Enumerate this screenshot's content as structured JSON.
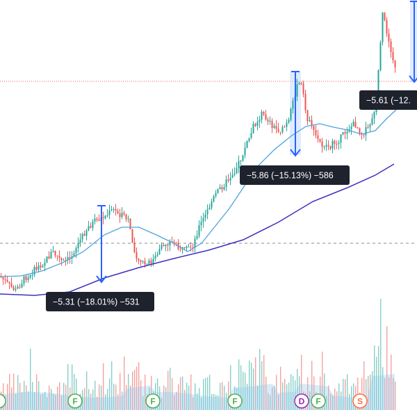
{
  "chart_data": {
    "type": "candlestick",
    "colors": {
      "up": "#26a69a",
      "down": "#ef5350",
      "ma_fast": "#4aa3df",
      "ma_slow": "#3b2fbf",
      "measure": "#2962ff",
      "price_line": "#ef5350",
      "dashed_line": "#8a8a8a",
      "label_bg": "#1e222d",
      "label_text": "#ffffff",
      "earnings_badge": "#4caf50",
      "dividend_badge": "#9c27b0",
      "split_badge": "#ff7043"
    },
    "measurements": [
      {
        "label": "−5.31 (−18.01%) −531",
        "from": 0,
        "to": -5.31
      },
      {
        "label": "−5.86 (−15.13%) −586",
        "from": 0,
        "to": -5.86
      },
      {
        "label": "−5.61 (−12.",
        "from": 0,
        "to": -5.61
      }
    ],
    "event_badges": [
      {
        "letter": "F",
        "kind": "earnings"
      },
      {
        "letter": "F",
        "kind": "earnings"
      },
      {
        "letter": "F",
        "kind": "earnings"
      },
      {
        "letter": "F",
        "kind": "earnings"
      },
      {
        "letter": "D",
        "kind": "dividend"
      },
      {
        "letter": "F",
        "kind": "earnings"
      },
      {
        "letter": "S",
        "kind": "split"
      }
    ],
    "grid": false,
    "legend": "none"
  }
}
